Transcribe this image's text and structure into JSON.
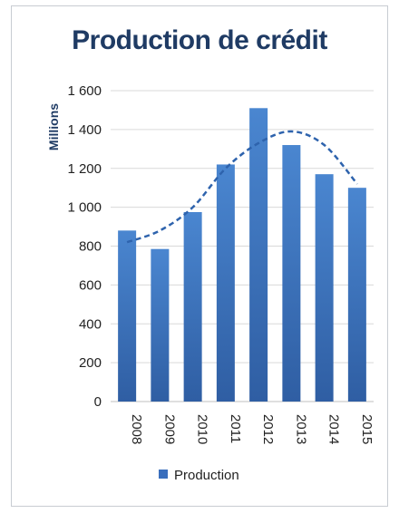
{
  "chart_data": {
    "type": "bar",
    "title": "Production de crédit",
    "xlabel": "",
    "ylabel": "Millions",
    "categories": [
      "2008",
      "2009",
      "2010",
      "2011",
      "2012",
      "2013",
      "2014",
      "2015"
    ],
    "series": [
      {
        "name": "Production",
        "values": [
          880,
          785,
          975,
          1220,
          1510,
          1320,
          1170,
          1100
        ]
      }
    ],
    "trendline": {
      "style": "dashed",
      "values": [
        820,
        880,
        1000,
        1200,
        1330,
        1390,
        1320,
        1120
      ]
    },
    "yticks": [
      "0",
      "200",
      "400",
      "600",
      "800",
      "1 000",
      "1 200",
      "1 400",
      "1 600"
    ],
    "ylim": [
      0,
      1600
    ],
    "grid": true,
    "legend": "bottom",
    "colors": {
      "bar_top": "#4a86d0",
      "bar_bottom": "#2f5ea3",
      "line": "#2e63ad",
      "title": "#1f3b64"
    }
  }
}
